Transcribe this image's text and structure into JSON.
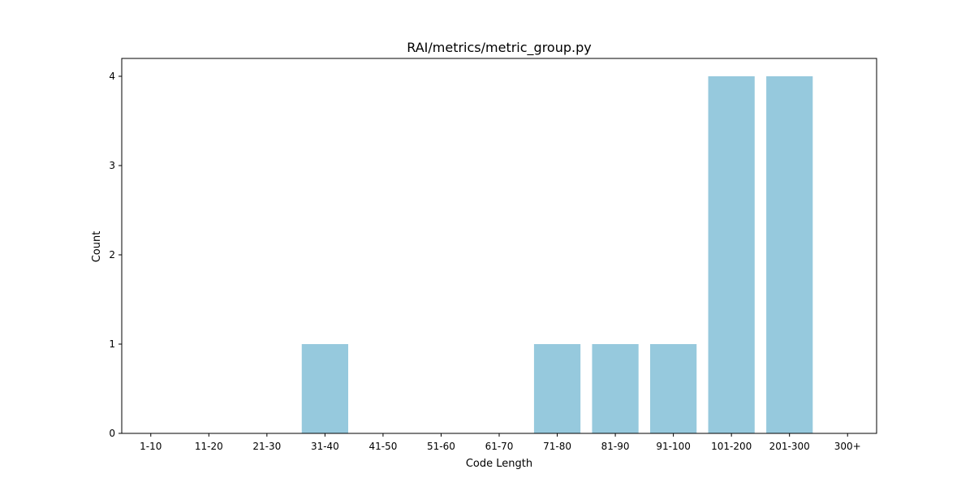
{
  "chart_data": {
    "type": "bar",
    "title": "RAI/metrics/metric_group.py",
    "xlabel": "Code Length",
    "ylabel": "Count",
    "categories": [
      "1-10",
      "11-20",
      "21-30",
      "31-40",
      "41-50",
      "51-60",
      "61-70",
      "71-80",
      "81-90",
      "91-100",
      "101-200",
      "201-300",
      "300+"
    ],
    "values": [
      0,
      0,
      0,
      1,
      0,
      0,
      0,
      1,
      1,
      1,
      4,
      4,
      0
    ],
    "ylim": [
      0,
      4.2
    ],
    "yticks": [
      0,
      1,
      2,
      3,
      4
    ],
    "bar_color": "#96c9dd",
    "grid": false,
    "legend": "none"
  }
}
